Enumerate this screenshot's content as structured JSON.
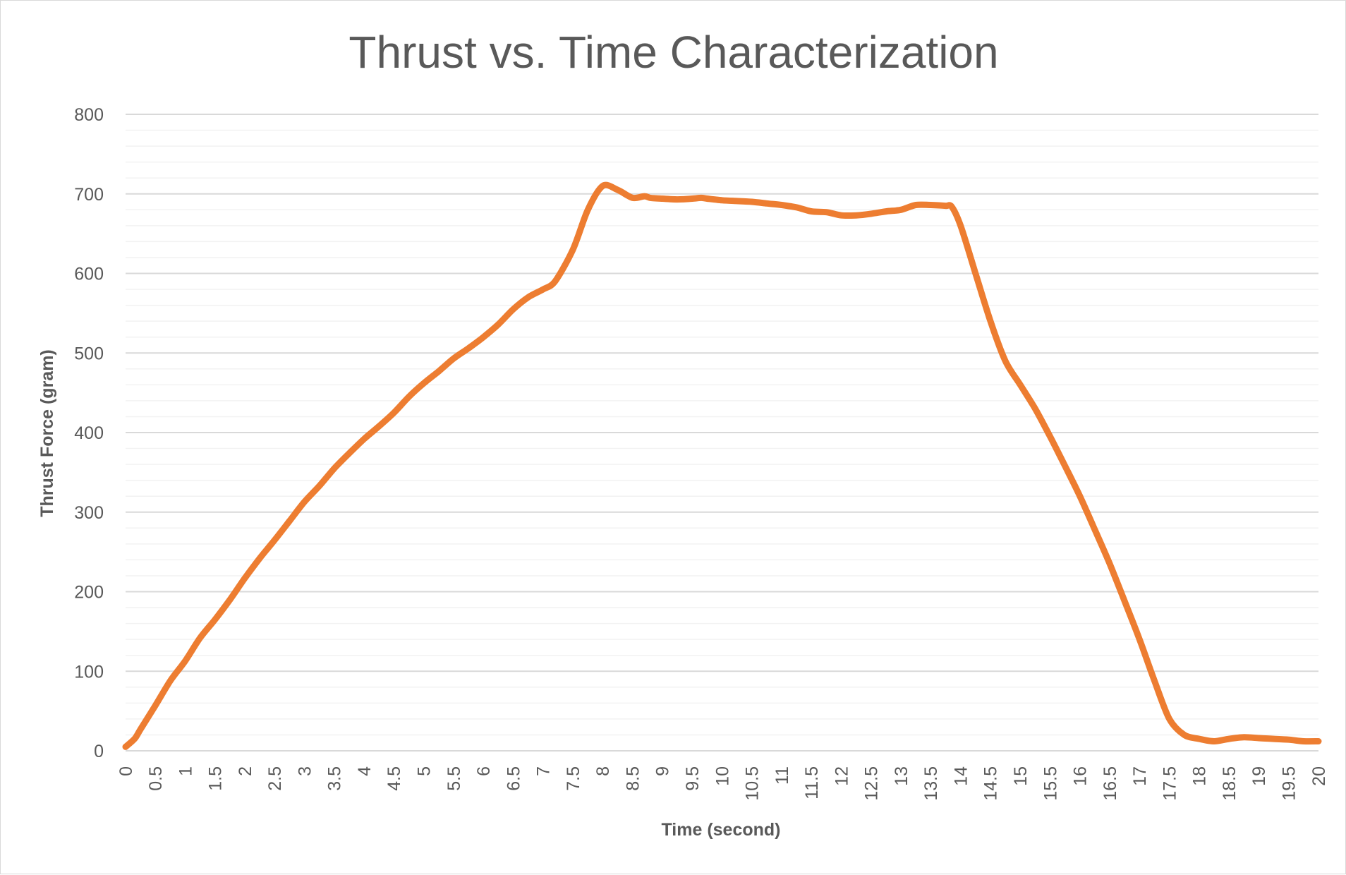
{
  "chart_data": {
    "type": "line",
    "title": "Thrust vs. Time Characterization",
    "xlabel": "Time (second)",
    "ylabel": "Thrust Force (gram)",
    "xlim": [
      0,
      20
    ],
    "ylim": [
      0,
      800
    ],
    "x_ticks": [
      "0",
      "0.5",
      "1",
      "1.5",
      "2",
      "2.5",
      "3",
      "3.5",
      "4",
      "4.5",
      "5",
      "5.5",
      "6",
      "6.5",
      "7",
      "7.5",
      "8",
      "8.5",
      "9",
      "9.5",
      "10",
      "10.5",
      "11",
      "11.5",
      "12",
      "12.5",
      "13",
      "13.5",
      "14",
      "14.5",
      "15",
      "15.5",
      "16",
      "16.5",
      "17",
      "17.5",
      "18",
      "18.5",
      "19",
      "19.5",
      "20"
    ],
    "y_ticks": [
      "0",
      "100",
      "200",
      "300",
      "400",
      "500",
      "600",
      "700",
      "800"
    ],
    "grid": {
      "major": true,
      "minor": true
    },
    "legend": "none",
    "series": [
      {
        "color": "#ED7D31",
        "x": [
          0,
          0.15,
          0.25,
          0.5,
          0.75,
          1,
          1.25,
          1.5,
          1.75,
          2,
          2.25,
          2.5,
          2.75,
          3,
          3.25,
          3.5,
          3.75,
          4,
          4.25,
          4.5,
          4.75,
          5,
          5.25,
          5.5,
          5.75,
          6,
          6.25,
          6.5,
          6.75,
          7,
          7.2,
          7.5,
          7.75,
          8,
          8.25,
          8.5,
          8.7,
          8.8,
          9,
          9.25,
          9.5,
          9.65,
          9.75,
          10,
          10.25,
          10.5,
          10.75,
          11,
          11.25,
          11.5,
          11.75,
          12,
          12.25,
          12.5,
          12.75,
          13,
          13.25,
          13.5,
          13.75,
          13.85,
          14,
          14.25,
          14.5,
          14.75,
          15,
          15.25,
          15.5,
          15.75,
          16,
          16.25,
          16.5,
          16.75,
          17,
          17.25,
          17.5,
          17.75,
          18,
          18.25,
          18.5,
          18.75,
          19,
          19.25,
          19.5,
          19.75,
          20
        ],
        "values": [
          5,
          15,
          27,
          57,
          88,
          113,
          142,
          165,
          190,
          217,
          242,
          265,
          289,
          313,
          333,
          355,
          374,
          392,
          408,
          425,
          445,
          462,
          477,
          493,
          506,
          520,
          536,
          555,
          570,
          580,
          590,
          630,
          680,
          710,
          705,
          695,
          697,
          695,
          694,
          693,
          694,
          695,
          694,
          692,
          691,
          690,
          688,
          686,
          683,
          678,
          677,
          673,
          673,
          675,
          678,
          680,
          686,
          686,
          685,
          684,
          660,
          600,
          540,
          490,
          460,
          430,
          395,
          358,
          320,
          278,
          235,
          188,
          140,
          88,
          40,
          20,
          15,
          12,
          15,
          17,
          16,
          15,
          14,
          12,
          12
        ]
      }
    ]
  }
}
